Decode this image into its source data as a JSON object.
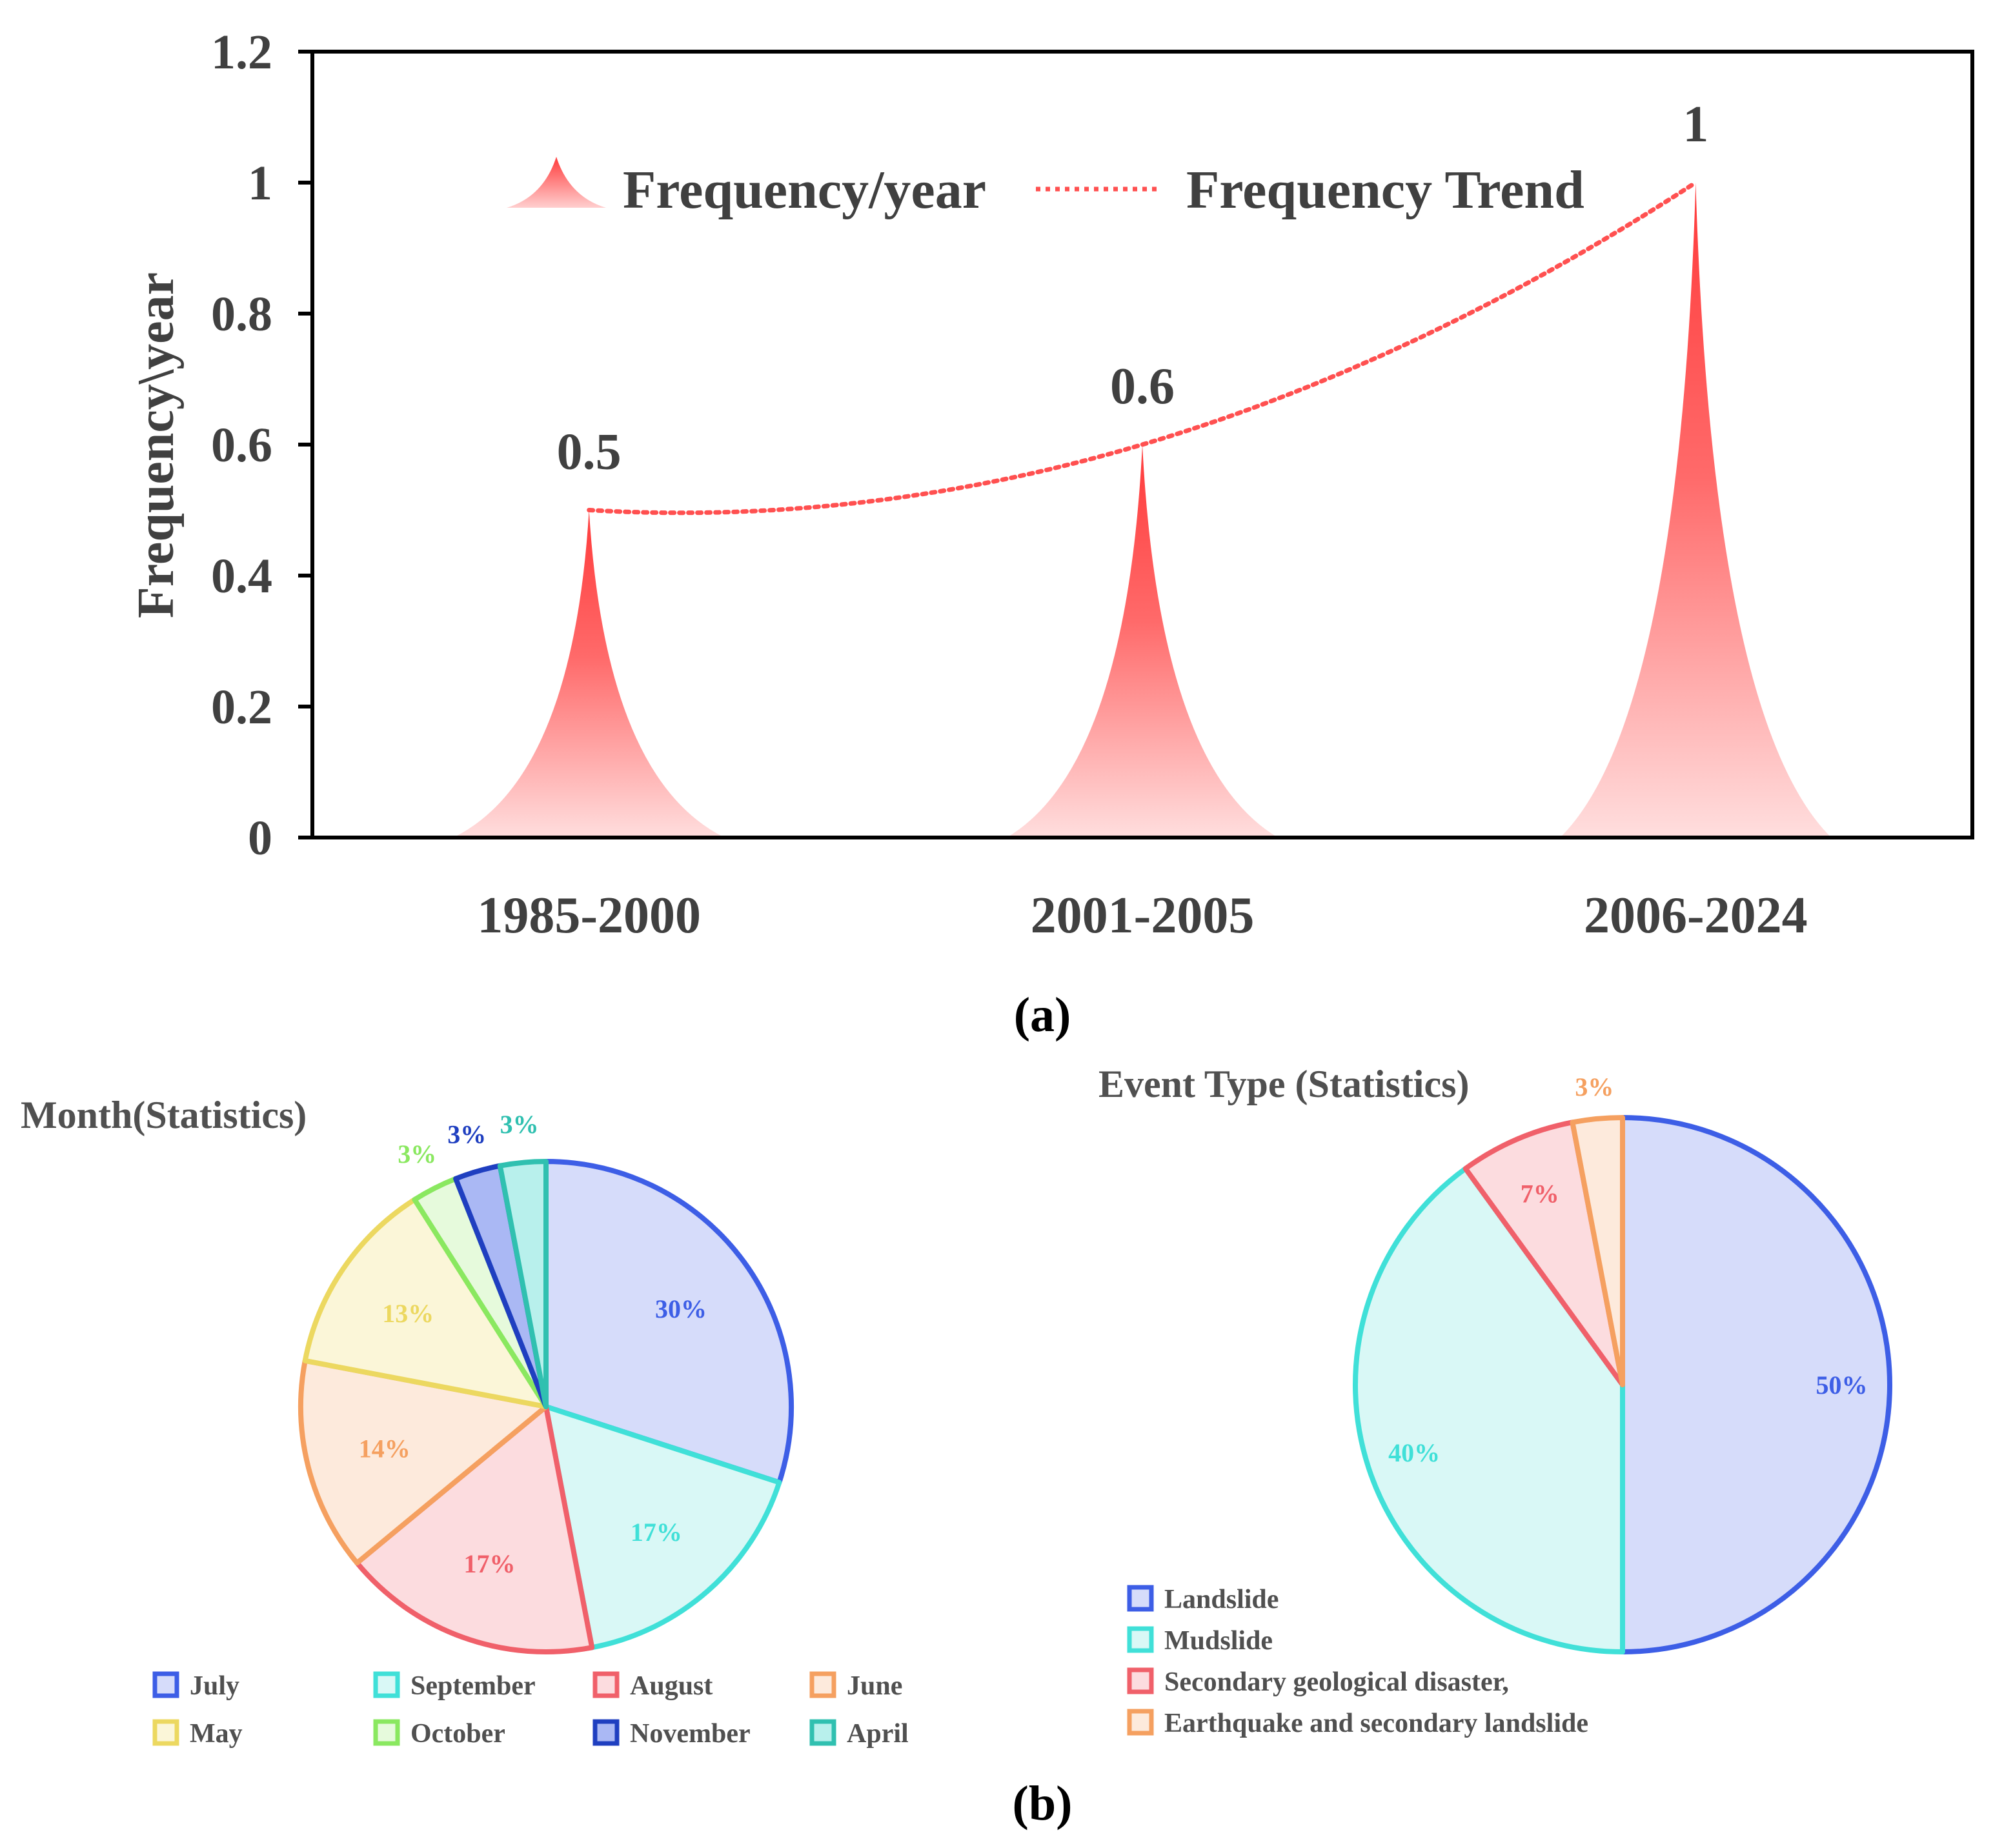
{
  "colors": {
    "peak": "#ff4d4d",
    "peak_light": "#ffd6d6",
    "trend": "#ff5050",
    "axis": "#000000",
    "text": "#404040"
  },
  "chart_data": [
    {
      "type": "area",
      "panel": "a",
      "caption": "(a)",
      "title": "",
      "xlabel": "",
      "ylabel": "Frequency\\year",
      "categories": [
        "1985-2000",
        "2001-2005",
        "2006-2024"
      ],
      "values": [
        0.5,
        0.6,
        1
      ],
      "value_labels": [
        "0.5",
        "0.6",
        "1"
      ],
      "ylim": [
        0,
        1.2
      ],
      "yticks": [
        "0",
        "0.2",
        "0.4",
        "0.6",
        "0.8",
        "1",
        "1.2"
      ],
      "grid": false,
      "legend_position": "top",
      "series": [
        {
          "name": "Frequency/year",
          "style": "peak-area",
          "values": [
            0.5,
            0.6,
            1
          ]
        },
        {
          "name": "Frequency Trend",
          "style": "dotted-line",
          "values": [
            0.5,
            0.6,
            1
          ]
        }
      ]
    },
    {
      "type": "pie",
      "panel": "b-left",
      "title": "Month(Statistics)",
      "slices": [
        {
          "label": "July",
          "value": 30,
          "text": "30%",
          "color": "#3d5ee6",
          "fill": "#d6dcfa"
        },
        {
          "label": "September",
          "value": 17,
          "text": "17%",
          "color": "#40e0d8",
          "fill": "#d9f8f6"
        },
        {
          "label": "August",
          "value": 17,
          "text": "17%",
          "color": "#f0606a",
          "fill": "#fcdcdf"
        },
        {
          "label": "June",
          "value": 14,
          "text": "14%",
          "color": "#f5a060",
          "fill": "#fdeadc"
        },
        {
          "label": "May",
          "value": 13,
          "text": "13%",
          "color": "#ecd860",
          "fill": "#fbf6d8"
        },
        {
          "label": "October",
          "value": 3,
          "text": "3%",
          "color": "#8ae860",
          "fill": "#e6fadc"
        },
        {
          "label": "November",
          "value": 3,
          "text": "3%",
          "color": "#1f3fc0",
          "fill": "#aab8f4"
        },
        {
          "label": "April",
          "value": 3,
          "text": "3%",
          "color": "#30c0b0",
          "fill": "#b8f0ec"
        }
      ],
      "legend": [
        "July",
        "September",
        "August",
        "June",
        "May",
        "October",
        "November",
        "April"
      ],
      "legend_position": "bottom"
    },
    {
      "type": "pie",
      "panel": "b-right",
      "title": "Event Type (Statistics)",
      "slices": [
        {
          "label": "Landslide",
          "value": 50,
          "text": "50%",
          "color": "#3d5ee6",
          "fill": "#d6dcfa"
        },
        {
          "label": "Mudslide",
          "value": 40,
          "text": "40%",
          "color": "#40e0d8",
          "fill": "#d9f8f6"
        },
        {
          "label": "Secondary geological disaster,",
          "value": 7,
          "text": "7%",
          "color": "#f0606a",
          "fill": "#fcdcdf"
        },
        {
          "label": "Earthquake and secondary landslide",
          "value": 3,
          "text": "3%",
          "color": "#f5a060",
          "fill": "#fdeadc"
        }
      ],
      "legend": [
        "Landslide",
        "Mudslide",
        "Secondary geological disaster,",
        "Earthquake and secondary landslide"
      ],
      "legend_position": "bottom-left"
    }
  ],
  "captions": {
    "a": "(a)",
    "b": "(b)"
  }
}
